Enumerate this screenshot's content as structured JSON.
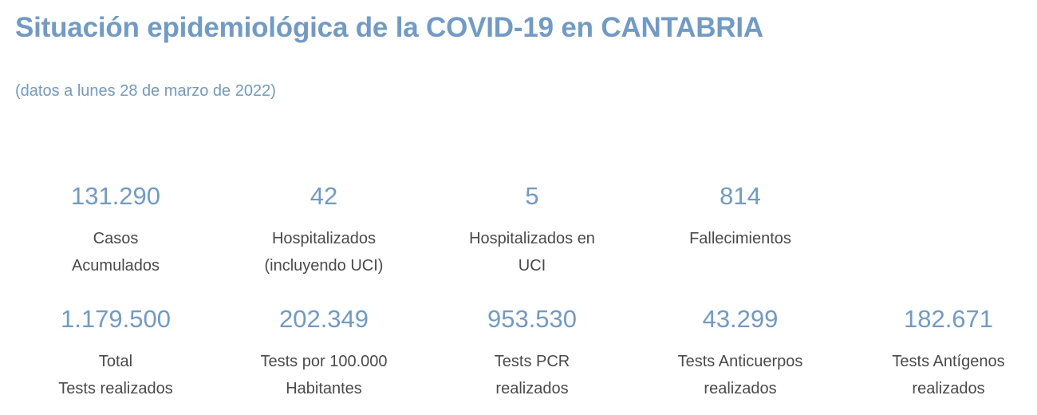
{
  "header": {
    "title": "Situación epidemiológica de la COVID-19 en CANTABRIA",
    "subtitle": "(datos a lunes 28 de marzo de 2022)"
  },
  "row1": [
    {
      "value": "131.290",
      "label_line1": "Casos",
      "label_line2": "Acumulados"
    },
    {
      "value": "42",
      "label_line1": "Hospitalizados",
      "label_line2": "(incluyendo UCI)"
    },
    {
      "value": "5",
      "label_line1": "Hospitalizados en",
      "label_line2": "UCI"
    },
    {
      "value": "814",
      "label_line1": "Fallecimientos",
      "label_line2": ""
    }
  ],
  "row2": [
    {
      "value": "1.179.500",
      "label_line1": "Total",
      "label_line2": "Tests realizados"
    },
    {
      "value": "202.349",
      "label_line1": "Tests por 100.000",
      "label_line2": "Habitantes"
    },
    {
      "value": "953.530",
      "label_line1": "Tests PCR",
      "label_line2": "realizados"
    },
    {
      "value": "43.299",
      "label_line1": "Tests Anticuerpos",
      "label_line2": "realizados"
    },
    {
      "value": "182.671",
      "label_line1": "Tests Antígenos",
      "label_line2": "realizados"
    }
  ],
  "colors": {
    "accent": "#6f9bc9",
    "label_text": "#4a4a4a",
    "background": "#ffffff"
  }
}
